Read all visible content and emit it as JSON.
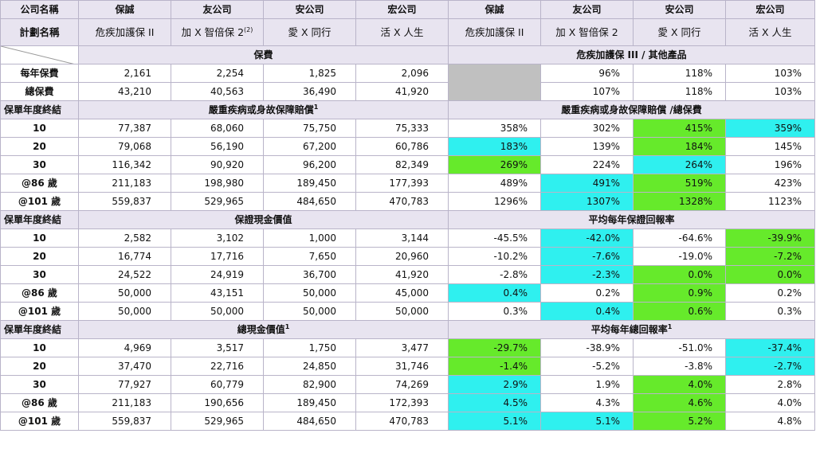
{
  "header": {
    "company_label": "公司名稱",
    "plan_label": "計劃名稱",
    "companies": [
      "保誠",
      "友公司",
      "安公司",
      "宏公司",
      "保誠",
      "友公司",
      "安公司",
      "宏公司"
    ],
    "plans": [
      "危疾加護保 II",
      "加 X 智倍保 2",
      "愛 X 同行",
      "活 X 人生",
      "危疾加護保 II",
      "加 X 智倍保 2",
      "愛 X 同行",
      "活 X 人生"
    ],
    "plan2_sup": "(2)"
  },
  "premium": {
    "section_left": "保費",
    "section_right": "危疾加護保 III / 其他產品",
    "rows": [
      {
        "label": "每年保費",
        "vals": [
          "2,161",
          "2,254",
          "1,825",
          "2,096"
        ],
        "pcts": [
          "96%",
          "118%",
          "103%"
        ]
      },
      {
        "label": "總保費",
        "vals": [
          "43,210",
          "40,563",
          "36,490",
          "41,920"
        ],
        "pcts": [
          "107%",
          "118%",
          "103%"
        ]
      }
    ]
  },
  "sections": [
    {
      "label": "保單年度終結",
      "title_left": "嚴重疾病或身故保障賠償",
      "title_left_sup": "1",
      "title_right": "嚴重疾病或身故保障賠償 /總保費",
      "title_right_sup": "",
      "rows": [
        {
          "label": "10",
          "vals": [
            "77,387",
            "68,060",
            "75,750",
            "75,333"
          ],
          "pcts": [
            "358%",
            "302%",
            "415%",
            "359%"
          ],
          "hl": [
            "",
            "",
            "g",
            "c"
          ]
        },
        {
          "label": "20",
          "vals": [
            "79,068",
            "56,190",
            "67,200",
            "60,786"
          ],
          "pcts": [
            "183%",
            "139%",
            "184%",
            "145%"
          ],
          "hl": [
            "c",
            "",
            "g",
            ""
          ]
        },
        {
          "label": "30",
          "vals": [
            "116,342",
            "90,920",
            "96,200",
            "82,349"
          ],
          "pcts": [
            "269%",
            "224%",
            "264%",
            "196%"
          ],
          "hl": [
            "g",
            "",
            "c",
            ""
          ]
        },
        {
          "label": "@86 歲",
          "vals": [
            "211,183",
            "198,980",
            "189,450",
            "177,393"
          ],
          "pcts": [
            "489%",
            "491%",
            "519%",
            "423%"
          ],
          "hl": [
            "",
            "c",
            "g",
            ""
          ]
        },
        {
          "label": "@101 歲",
          "vals": [
            "559,837",
            "529,965",
            "484,650",
            "470,783"
          ],
          "pcts": [
            "1296%",
            "1307%",
            "1328%",
            "1123%"
          ],
          "hl": [
            "",
            "c",
            "g",
            ""
          ]
        }
      ]
    },
    {
      "label": "保單年度終結",
      "title_left": "保證現金價值",
      "title_left_sup": "",
      "title_right": "平均每年保證回報率",
      "title_right_sup": "",
      "rows": [
        {
          "label": "10",
          "vals": [
            "2,582",
            "3,102",
            "1,000",
            "3,144"
          ],
          "pcts": [
            "-45.5%",
            "-42.0%",
            "-64.6%",
            "-39.9%"
          ],
          "hl": [
            "",
            "c",
            "",
            "g"
          ]
        },
        {
          "label": "20",
          "vals": [
            "16,774",
            "17,716",
            "7,650",
            "20,960"
          ],
          "pcts": [
            "-10.2%",
            "-7.6%",
            "-19.0%",
            "-7.2%"
          ],
          "hl": [
            "",
            "c",
            "",
            "g"
          ]
        },
        {
          "label": "30",
          "vals": [
            "24,522",
            "24,919",
            "36,700",
            "41,920"
          ],
          "pcts": [
            "-2.8%",
            "-2.3%",
            "0.0%",
            "0.0%"
          ],
          "hl": [
            "",
            "c",
            "g",
            "g"
          ]
        },
        {
          "label": "@86 歲",
          "vals": [
            "50,000",
            "43,151",
            "50,000",
            "45,000"
          ],
          "pcts": [
            "0.4%",
            "0.2%",
            "0.9%",
            "0.2%"
          ],
          "hl": [
            "c",
            "",
            "g",
            ""
          ]
        },
        {
          "label": "@101 歲",
          "vals": [
            "50,000",
            "50,000",
            "50,000",
            "50,000"
          ],
          "pcts": [
            "0.3%",
            "0.4%",
            "0.6%",
            "0.3%"
          ],
          "hl": [
            "",
            "c",
            "g",
            ""
          ]
        }
      ]
    },
    {
      "label": "保單年度終結",
      "title_left": "總現金價值",
      "title_left_sup": "1",
      "title_right": "平均每年總回報率",
      "title_right_sup": "1",
      "rows": [
        {
          "label": "10",
          "vals": [
            "4,969",
            "3,517",
            "1,750",
            "3,477"
          ],
          "pcts": [
            "-29.7%",
            "-38.9%",
            "-51.0%",
            "-37.4%"
          ],
          "hl": [
            "g",
            "",
            "",
            "c"
          ]
        },
        {
          "label": "20",
          "vals": [
            "37,470",
            "22,716",
            "24,850",
            "31,746"
          ],
          "pcts": [
            "-1.4%",
            "-5.2%",
            "-3.8%",
            "-2.7%"
          ],
          "hl": [
            "g",
            "",
            "",
            "c"
          ]
        },
        {
          "label": "30",
          "vals": [
            "77,927",
            "60,779",
            "82,900",
            "74,269"
          ],
          "pcts": [
            "2.9%",
            "1.9%",
            "4.0%",
            "2.8%"
          ],
          "hl": [
            "c",
            "",
            "g",
            ""
          ]
        },
        {
          "label": "@86 歲",
          "vals": [
            "211,183",
            "190,656",
            "189,450",
            "172,393"
          ],
          "pcts": [
            "4.5%",
            "4.3%",
            "4.6%",
            "4.0%"
          ],
          "hl": [
            "c",
            "",
            "g",
            ""
          ]
        },
        {
          "label": "@101 歲",
          "vals": [
            "559,837",
            "529,965",
            "484,650",
            "470,783"
          ],
          "pcts": [
            "5.1%",
            "5.1%",
            "5.2%",
            "4.8%"
          ],
          "hl": [
            "c",
            "c",
            "g",
            ""
          ]
        }
      ]
    }
  ],
  "colors": {
    "green": "#66ea2b",
    "cyan": "#2ff0ef",
    "gray": "#c0c0c0",
    "header_bg": "#e8e4f0"
  }
}
